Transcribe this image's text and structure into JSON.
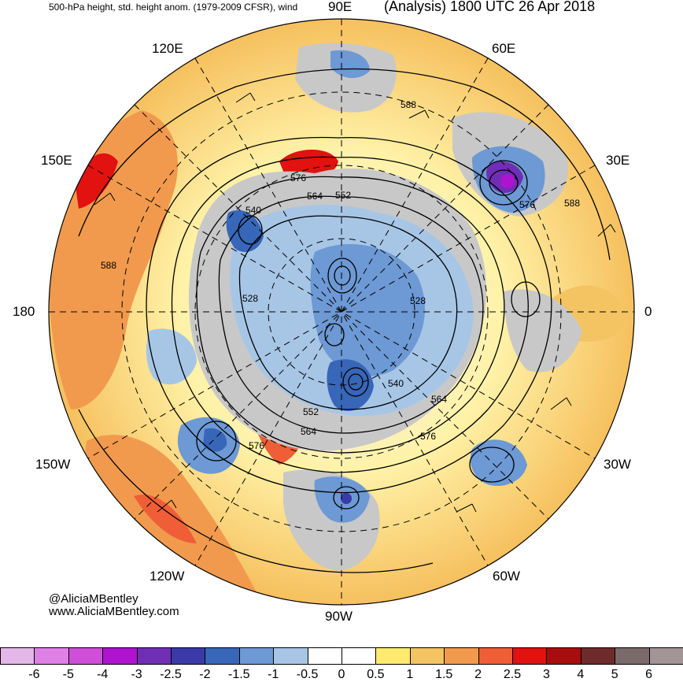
{
  "header": {
    "left_title": "500-hPa height, std. height anom. (1979-2009 CFSR), wind",
    "right_title": "(Analysis) 1800 UTC 26 Apr 2018"
  },
  "longitude_labels": {
    "top": "90E",
    "upper_left": "120E",
    "upper_right": "60E",
    "left_upper": "150E",
    "right_upper": "30E",
    "left": "180",
    "right": "0",
    "left_lower": "150W",
    "right_lower": "30W",
    "lower_left": "120W",
    "lower_right": "60W",
    "bottom": "90W"
  },
  "contour_labels": [
    "576",
    "564",
    "552",
    "540",
    "588",
    "528",
    "528",
    "540",
    "564",
    "576",
    "552",
    "564",
    "576",
    "576",
    "588",
    "588"
  ],
  "credits": {
    "handle": "@AliciaMBentley",
    "website": "www.AliciaMBentley.com"
  },
  "colorbar": {
    "ticks": [
      "-6",
      "-5",
      "-4",
      "-3",
      "-2.5",
      "-2",
      "-1.5",
      "-1",
      "-0.5",
      "0",
      "0.5",
      "1",
      "1.5",
      "2",
      "2.5",
      "3",
      "4",
      "5",
      "6"
    ],
    "colors": [
      "#e5b7e8",
      "#de80e6",
      "#cf4fd9",
      "#ae14d0",
      "#6f2fb4",
      "#3a3aa8",
      "#3866b8",
      "#6d99d4",
      "#a7c6e6",
      "#ffffff",
      "#ffffff",
      "#ffea6e",
      "#f4c462",
      "#f19a4e",
      "#ef5e36",
      "#e1120f",
      "#a80d0d",
      "#6f2a2a",
      "#7a6a6a",
      "#a39596"
    ]
  },
  "colors": {
    "land_gray": "#c8c8c8",
    "contour": "#000000"
  }
}
